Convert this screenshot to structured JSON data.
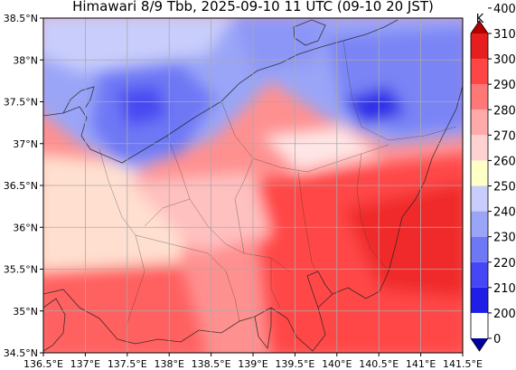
{
  "title": "Himawari 8/9 Tbb, 2025-09-10 11 UTC (09-10 20 JST)",
  "map": {
    "lon_range": [
      136.5,
      141.5
    ],
    "lat_range": [
      34.5,
      38.5
    ],
    "x_ticks": [
      136.5,
      137.0,
      137.5,
      138.0,
      138.5,
      139.0,
      139.5,
      140.0,
      140.5,
      141.0,
      141.5
    ],
    "x_tick_labels": [
      "136.5°E",
      "137°E",
      "137.5°E",
      "138°E",
      "138.5°E",
      "139°E",
      "139.5°E",
      "140°E",
      "140.5°E",
      "141°E",
      "141.5°E"
    ],
    "y_ticks": [
      34.5,
      35.0,
      35.5,
      36.0,
      36.5,
      37.0,
      37.5,
      38.0,
      38.5
    ],
    "y_tick_labels": [
      "34.5°N",
      "35°N",
      "35.5°N",
      "36°N",
      "36.5°N",
      "37°N",
      "37.5°N",
      "38°N",
      "38.5°N"
    ],
    "grid": true
  },
  "colorbar": {
    "unit": "K",
    "levels": [
      0,
      200,
      210,
      220,
      230,
      240,
      250,
      260,
      270,
      280,
      290,
      300,
      310,
      400
    ],
    "tick_labels": [
      "0",
      "200",
      "210",
      "220",
      "230",
      "240",
      "250",
      "260",
      "270",
      "280",
      "290",
      "300",
      "310",
      "400"
    ],
    "colors": [
      "#0000a0",
      "#1e1ee6",
      "#4646f5",
      "#6e78f5",
      "#9aa5f8",
      "#c8cdfc",
      "#ffffc8",
      "#ffd2d2",
      "#ffaaaa",
      "#ff7878",
      "#ff4646",
      "#e61e1e",
      "#b40000"
    ],
    "extend": "both"
  }
}
